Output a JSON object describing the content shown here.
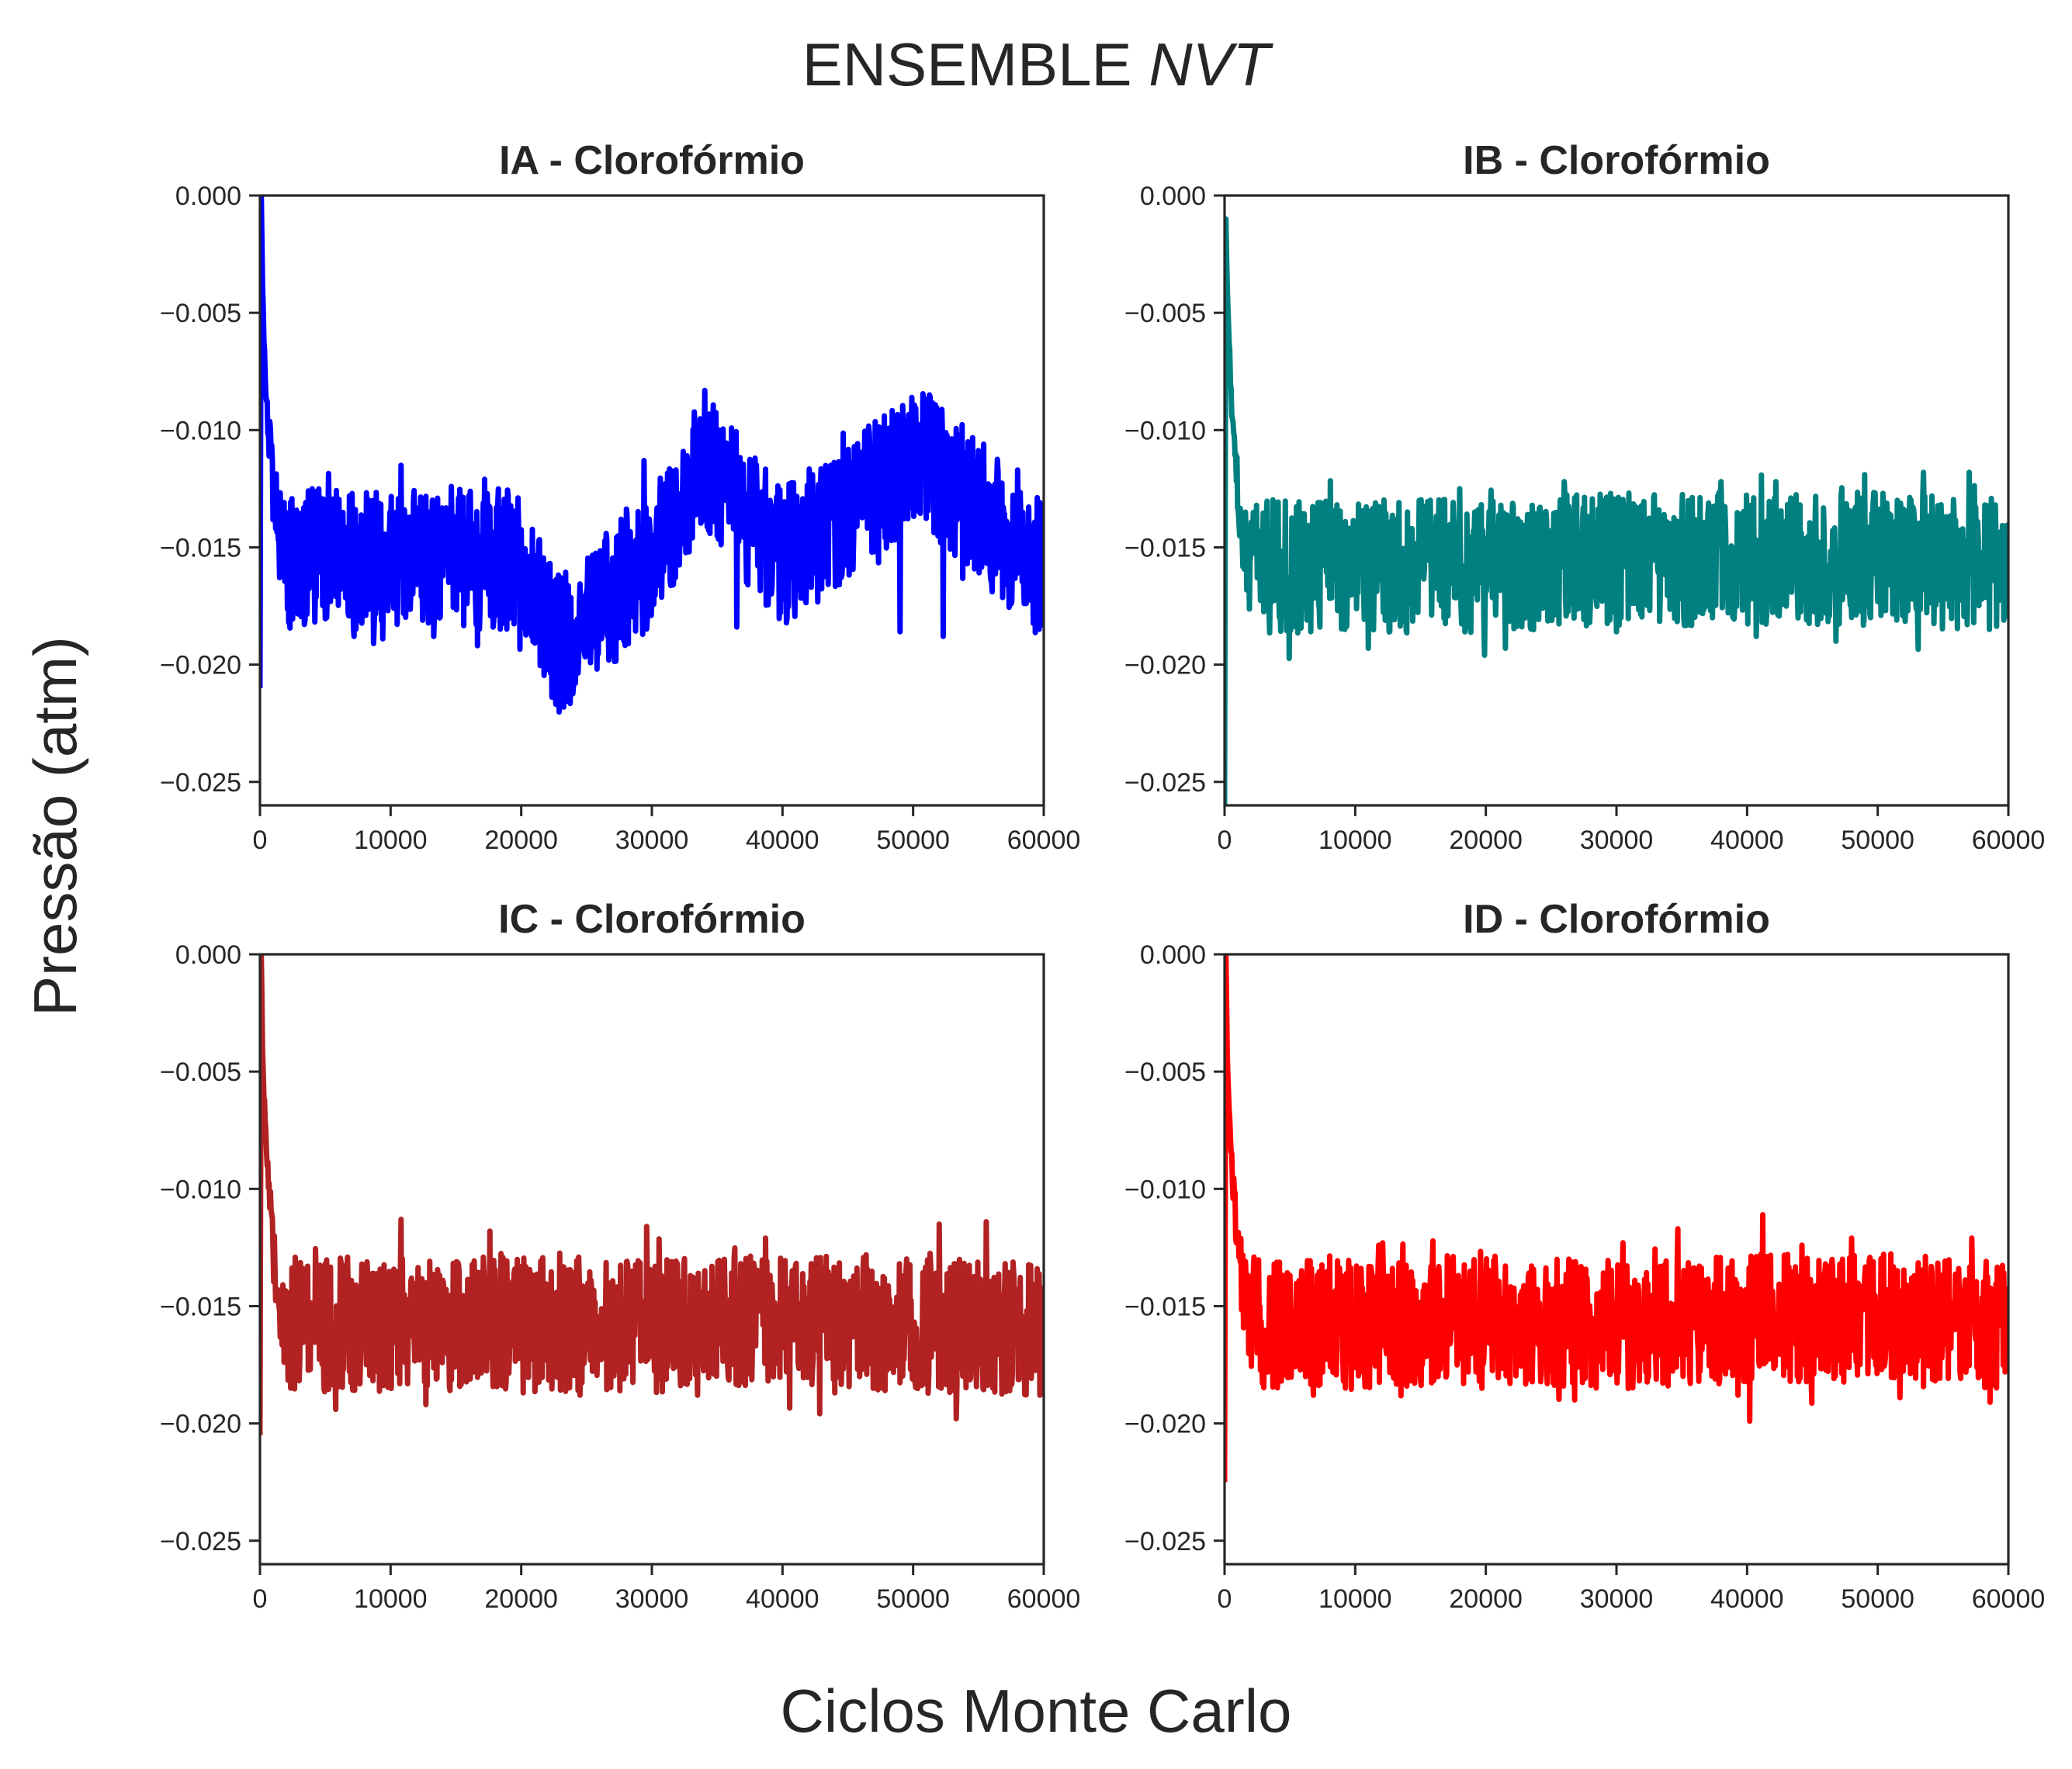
{
  "figure": {
    "title_prefix": "ENSEMBLE ",
    "title_italic": "NVT",
    "xlabel": "Ciclos Monte Carlo",
    "ylabel": "Pressão (atm)"
  },
  "chart_data": [
    {
      "type": "line",
      "title": "IA - Clorofórmio",
      "color": "#0000ff",
      "xlim": [
        0,
        60000
      ],
      "ylim": [
        -0.026,
        0.0
      ],
      "xticks": [
        0,
        10000,
        20000,
        30000,
        40000,
        50000,
        60000
      ],
      "yticks": [
        0.0,
        -0.005,
        -0.01,
        -0.015,
        -0.02,
        -0.025
      ],
      "xtick_labels": [
        "0",
        "10000",
        "20000",
        "30000",
        "40000",
        "50000",
        "60000"
      ],
      "ytick_labels": [
        "0.000",
        "−0.005",
        "−0.010",
        "−0.015",
        "−0.020",
        "−0.025"
      ],
      "series": [
        {
          "x": [
            0,
            100,
            200,
            400,
            600,
            800,
            1000,
            1500,
            2000,
            3000,
            5000,
            10000,
            20000,
            22800,
            30000,
            34000,
            40000,
            50500,
            60000
          ],
          "y": [
            -0.021,
            0.0,
            -0.004,
            -0.008,
            -0.0095,
            -0.011,
            -0.0125,
            -0.0145,
            -0.0155,
            -0.0155,
            -0.0155,
            -0.0155,
            -0.0155,
            -0.0192,
            -0.0155,
            -0.0112,
            -0.0155,
            -0.011,
            -0.016
          ],
          "noise_band": [
            -0.0185,
            -0.0125
          ],
          "spikes": [
            [
              2200,
              -0.0182
            ],
            [
              7200,
              -0.0188
            ],
            [
              9400,
              -0.0189
            ],
            [
              10800,
              -0.0115
            ],
            [
              13300,
              -0.0188
            ],
            [
              17200,
              -0.0121
            ],
            [
              20800,
              -0.0188
            ],
            [
              22800,
              -0.0192
            ],
            [
              29400,
              -0.0113
            ],
            [
              34000,
              -0.0112
            ],
            [
              36500,
              -0.0184
            ],
            [
              43700,
              -0.0115
            ],
            [
              49000,
              -0.0186
            ],
            [
              50500,
              -0.011
            ],
            [
              52300,
              -0.0188
            ],
            [
              58000,
              -0.0117
            ]
          ]
        }
      ]
    },
    {
      "type": "line",
      "title": "IB - Clorofórmio",
      "color": "#008080",
      "xlim": [
        0,
        60000
      ],
      "ylim": [
        -0.026,
        0.0
      ],
      "xticks": [
        0,
        10000,
        20000,
        30000,
        40000,
        50000,
        60000
      ],
      "yticks": [
        0.0,
        -0.005,
        -0.01,
        -0.015,
        -0.02,
        -0.025
      ],
      "xtick_labels": [
        "0",
        "10000",
        "20000",
        "30000",
        "40000",
        "50000",
        "60000"
      ],
      "ytick_labels": [
        "0.000",
        "−0.005",
        "−0.010",
        "−0.015",
        "−0.020",
        "−0.025"
      ],
      "series": [
        {
          "x": [
            0,
            100,
            200,
            400,
            600,
            800,
            1000,
            1500,
            2000,
            3000,
            5000,
            10000,
            20000,
            30000,
            40000,
            50000,
            60000
          ],
          "y": [
            -0.026,
            -0.001,
            -0.004,
            -0.007,
            -0.0095,
            -0.011,
            -0.0125,
            -0.0145,
            -0.0155,
            -0.0158,
            -0.0158,
            -0.0158,
            -0.0158,
            -0.0155,
            -0.0155,
            -0.0155,
            -0.0158
          ],
          "noise_band": [
            -0.0185,
            -0.0128
          ],
          "spikes": [
            [
              5200,
              -0.0184
            ],
            [
              9200,
              -0.0185
            ],
            [
              11000,
              -0.0193
            ],
            [
              18000,
              -0.0125
            ],
            [
              19900,
              -0.0196
            ],
            [
              21500,
              -0.0193
            ],
            [
              26000,
              -0.0122
            ],
            [
              30000,
              -0.0186
            ],
            [
              38000,
              -0.0122
            ],
            [
              40700,
              -0.0188
            ],
            [
              42200,
              -0.0122
            ],
            [
              46800,
              -0.019
            ],
            [
              49000,
              -0.0119
            ],
            [
              53500,
              -0.0118
            ],
            [
              57000,
              -0.0118
            ]
          ]
        }
      ]
    },
    {
      "type": "line",
      "title": "IC - Clorofórmio",
      "color": "#b22222",
      "xlim": [
        0,
        60000
      ],
      "ylim": [
        -0.026,
        0.0
      ],
      "xticks": [
        0,
        10000,
        20000,
        30000,
        40000,
        50000,
        60000
      ],
      "yticks": [
        0.0,
        -0.005,
        -0.01,
        -0.015,
        -0.02,
        -0.025
      ],
      "xtick_labels": [
        "0",
        "10000",
        "20000",
        "30000",
        "40000",
        "50000",
        "60000"
      ],
      "ytick_labels": [
        "0.000",
        "−0.005",
        "−0.010",
        "−0.015",
        "−0.020",
        "−0.025"
      ],
      "series": [
        {
          "x": [
            0,
            100,
            200,
            400,
            600,
            800,
            1000,
            1500,
            2000,
            3000,
            5000,
            10000,
            20000,
            30000,
            40000,
            50000,
            60000
          ],
          "y": [
            -0.0205,
            0.0,
            -0.004,
            -0.0075,
            -0.0095,
            -0.011,
            -0.0125,
            -0.0145,
            -0.0155,
            -0.0158,
            -0.0158,
            -0.0158,
            -0.0158,
            -0.0158,
            -0.0155,
            -0.0158,
            -0.016
          ],
          "noise_band": [
            -0.0185,
            -0.0127
          ],
          "spikes": [
            [
              5800,
              -0.0194
            ],
            [
              10800,
              -0.0113
            ],
            [
              12700,
              -0.0192
            ],
            [
              17600,
              -0.0118
            ],
            [
              24500,
              -0.0188
            ],
            [
              29600,
              -0.0116
            ],
            [
              33500,
              -0.0188
            ],
            [
              38700,
              -0.0121
            ],
            [
              44000,
              -0.0187
            ],
            [
              52000,
              -0.0115
            ],
            [
              53300,
              -0.0198
            ],
            [
              55600,
              -0.0114
            ]
          ]
        }
      ]
    },
    {
      "type": "line",
      "title": "ID - Clorofórmio",
      "color": "#ff0000",
      "xlim": [
        0,
        60000
      ],
      "ylim": [
        -0.026,
        0.0
      ],
      "xticks": [
        0,
        10000,
        20000,
        30000,
        40000,
        50000,
        60000
      ],
      "yticks": [
        0.0,
        -0.005,
        -0.01,
        -0.015,
        -0.02,
        -0.025
      ],
      "xtick_labels": [
        "0",
        "10000",
        "20000",
        "30000",
        "40000",
        "50000",
        "60000"
      ],
      "ytick_labels": [
        "0.000",
        "−0.005",
        "−0.010",
        "−0.015",
        "−0.020",
        "−0.025"
      ],
      "series": [
        {
          "x": [
            0,
            100,
            200,
            400,
            600,
            800,
            1000,
            1500,
            2000,
            3000,
            5000,
            10000,
            20000,
            30000,
            40000,
            50000,
            60000
          ],
          "y": [
            -0.0225,
            0.0,
            -0.004,
            -0.0075,
            -0.0095,
            -0.011,
            -0.0125,
            -0.0145,
            -0.0155,
            -0.0158,
            -0.0158,
            -0.0158,
            -0.0155,
            -0.0158,
            -0.0155,
            -0.0155,
            -0.0158
          ],
          "noise_band": [
            -0.0183,
            -0.0128
          ],
          "spikes": [
            [
              6800,
              -0.0188
            ],
            [
              11800,
              -0.0124
            ],
            [
              19700,
              -0.0185
            ],
            [
              26800,
              -0.019
            ],
            [
              30500,
              -0.0123
            ],
            [
              34700,
              -0.0117
            ],
            [
              39300,
              -0.0188
            ],
            [
              40200,
              -0.0199
            ],
            [
              41200,
              -0.0111
            ],
            [
              44200,
              -0.0124
            ],
            [
              48000,
              -0.0121
            ],
            [
              51700,
              -0.0189
            ],
            [
              57200,
              -0.0121
            ],
            [
              58600,
              -0.0191
            ]
          ]
        }
      ]
    }
  ]
}
